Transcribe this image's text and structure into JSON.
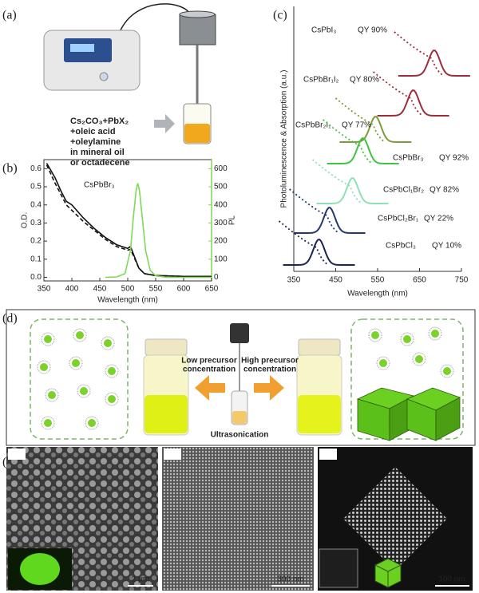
{
  "labels": [
    "(a)",
    "(b)",
    "(c)",
    "(d)",
    "(e)"
  ],
  "recipe": [
    "Cs₂CO₃+PbX₂",
    "+oleic acid",
    "+oleylamine",
    "in mineral oil",
    "or octadecene"
  ],
  "chart_data": [
    {
      "type": "line",
      "annotation": "CsPbBr₃",
      "xlabel": "Wavelength (nm)",
      "ylabel": "O.D.",
      "y2label": "PL",
      "xlim": [
        350,
        650
      ],
      "xticks": [
        350,
        400,
        450,
        500,
        550,
        600,
        650
      ],
      "ylim": [
        -0.02,
        0.65
      ],
      "yticks": [
        {
          "value": 0,
          "label": "0.0"
        },
        0.1,
        0.2,
        0.3,
        0.4,
        0.5,
        0.6
      ],
      "y2lim": [
        -20,
        650
      ],
      "y2ticks": [
        0,
        100,
        200,
        300,
        400,
        500,
        600
      ],
      "y2color": "#7ed957",
      "series": [
        {
          "color": "#111111",
          "dash": false,
          "x": [
            355,
            370,
            380,
            390,
            400,
            420,
            440,
            460,
            480,
            500,
            505,
            510,
            520,
            530,
            550,
            600,
            650
          ],
          "values": [
            0.63,
            0.55,
            0.48,
            0.42,
            0.4,
            0.33,
            0.27,
            0.22,
            0.18,
            0.16,
            0.17,
            0.13,
            0.05,
            0.02,
            0.01,
            0.005,
            0.005
          ]
        },
        {
          "color": "#111111",
          "dash": true,
          "x": [
            355,
            370,
            380,
            390,
            400,
            420,
            440,
            460,
            480,
            500,
            505,
            510,
            520,
            530,
            550,
            600,
            650
          ],
          "values": [
            0.62,
            0.52,
            0.46,
            0.4,
            0.37,
            0.31,
            0.26,
            0.21,
            0.17,
            0.15,
            0.155,
            0.12,
            0.05,
            0.02,
            0.01,
            0.005,
            0.005
          ]
        },
        {
          "color": "#7ed957",
          "dash": false,
          "axis": "y2",
          "x": [
            460,
            480,
            495,
            505,
            510,
            515,
            518,
            521,
            526,
            532,
            540,
            550,
            570,
            650
          ],
          "values": [
            0,
            2,
            20,
            150,
            330,
            480,
            520,
            480,
            330,
            150,
            40,
            8,
            0,
            0
          ]
        }
      ]
    },
    {
      "type": "spectra",
      "xlabel": "Wavelength (nm)",
      "ylabel": "Photoluminescence & Absorption (a.u.)",
      "xlim": [
        350,
        750
      ],
      "xticks": [
        350,
        450,
        550,
        650,
        750
      ],
      "series": [
        {
          "name": "CsPbI₃",
          "qy": "QY 90%",
          "color": "#9b2d3d",
          "peak": 685
        },
        {
          "name": "CsPbBr₁I₂",
          "qy": "QY 80%",
          "color": "#9b2d3d",
          "peak": 635
        },
        {
          "name": "CsPbBr₂I₁",
          "qy": "QY 77%",
          "color": "#7f9a3c",
          "peak": 545
        },
        {
          "name": "CsPbBr₃",
          "qy": "QY 92%",
          "color": "#3fc43f",
          "peak": 515
        },
        {
          "name": "CsPbCl₁Br₂",
          "qy": "QY 82%",
          "color": "#8fe0b4",
          "peak": 490
        },
        {
          "name": "CsPbCl₂Br₁",
          "qy": "QY 22%",
          "color": "#24386e",
          "peak": 435
        },
        {
          "name": "CsPbCl₃",
          "qy": "QY 10%",
          "color": "#1a2550",
          "peak": 410
        }
      ]
    }
  ],
  "panel_d": {
    "low": [
      "Low precursor",
      "concentration"
    ],
    "high": [
      "High precursor",
      "concentration"
    ],
    "center": "Ultrasonication"
  },
  "panel_e": {
    "scale_bars": [
      "2 μm",
      "300 nm",
      "100 nm"
    ]
  }
}
